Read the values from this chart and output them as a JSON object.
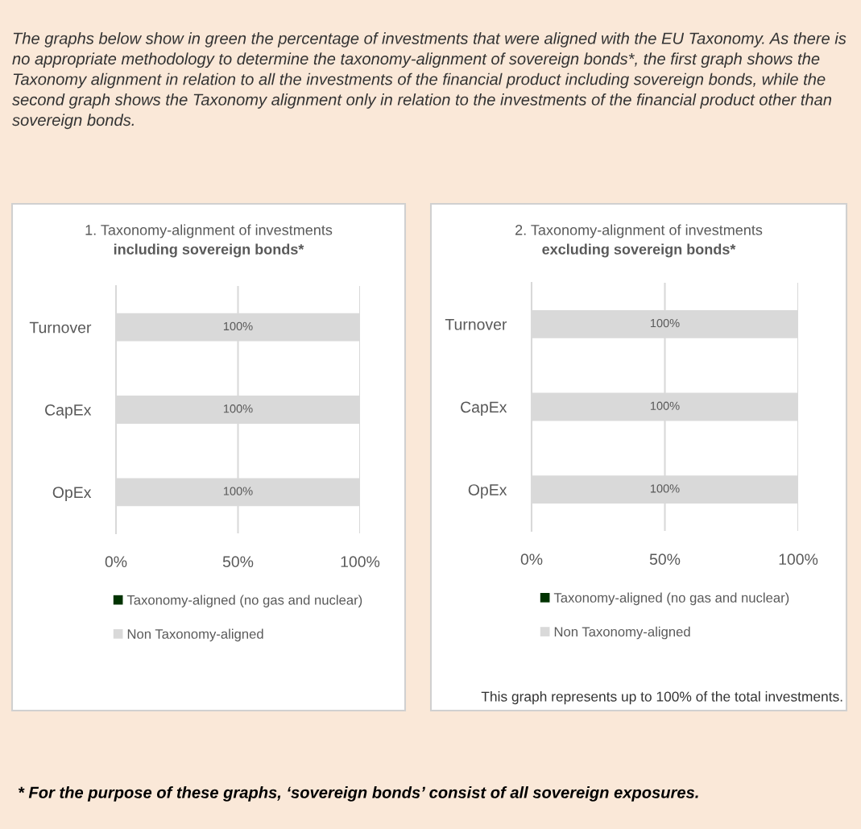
{
  "chart_data": [
    {
      "type": "bar",
      "orientation": "horizontal",
      "stacked": true,
      "title": "1. Taxonomy-alignment of investments",
      "subtitle": "including sovereign bonds*",
      "categories": [
        "Turnover",
        "CapEx",
        "OpEx"
      ],
      "series": [
        {
          "name": "Taxonomy-aligned (no gas and nuclear)",
          "color": "#003300",
          "values": [
            0,
            0,
            0
          ]
        },
        {
          "name": "Non Taxonomy-aligned",
          "color": "#d9d9d9",
          "values": [
            100,
            100,
            100
          ],
          "value_labels": [
            "100%",
            "100%",
            "100%"
          ]
        }
      ],
      "xlim": [
        0,
        100
      ],
      "xticks": [
        {
          "value": 0,
          "label": "0%"
        },
        {
          "value": 50,
          "label": "50%"
        },
        {
          "value": 100,
          "label": "100%"
        }
      ],
      "grid": "x",
      "legend": "bottom",
      "annotations": [
        "The graphs below show in green the percentage of investments that were aligned with the EU Taxonomy. As there is no appropriate methodology to determine the taxonomy-alignment of sovereign bonds*, the first graph shows the Taxonomy alignment in relation to all the investments of the financial product including sovereign bonds, while the second graph shows the Taxonomy alignment only in relation to the investments of the financial product other than sovereign bonds."
      ]
    },
    {
      "type": "bar",
      "orientation": "horizontal",
      "stacked": true,
      "title": "2. Taxonomy-alignment of investments",
      "subtitle": "excluding sovereign bonds*",
      "categories": [
        "Turnover",
        "CapEx",
        "OpEx"
      ],
      "series": [
        {
          "name": "Taxonomy-aligned (no gas and nuclear)",
          "color": "#003300",
          "values": [
            0,
            0,
            0
          ]
        },
        {
          "name": "Non Taxonomy-aligned",
          "color": "#d9d9d9",
          "values": [
            100,
            100,
            100
          ],
          "value_labels": [
            "100%",
            "100%",
            "100%"
          ]
        }
      ],
      "xlim": [
        0,
        100
      ],
      "xticks": [
        {
          "value": 0,
          "label": "0%"
        },
        {
          "value": 50,
          "label": "50%"
        },
        {
          "value": 100,
          "label": "100%"
        }
      ],
      "grid": "x",
      "legend": "bottom",
      "annotations": [
        "This graph represents up to 100% of the total investments.",
        "* For the purpose of these graphs, ‘sovereign bonds’ consist of all sovereign exposures."
      ]
    }
  ]
}
